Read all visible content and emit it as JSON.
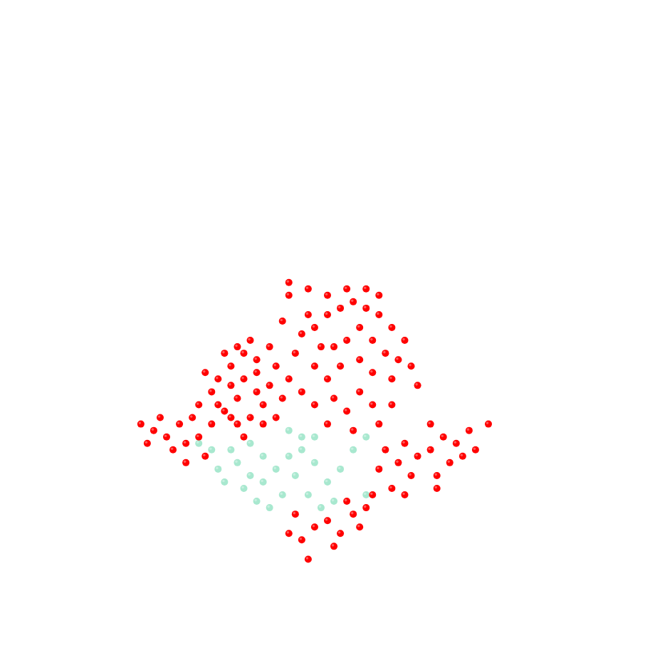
{
  "chart_data": {
    "type": "scatter",
    "xlim": [
      0,
      100
    ],
    "ylim": [
      0,
      100
    ],
    "tick_labels": false,
    "grid": false,
    "marker": "sphere",
    "series": [
      {
        "color": "#a8e8cf",
        "x": [
          36,
          38,
          40,
          37,
          39,
          42,
          44,
          46,
          45,
          43,
          41,
          48,
          50,
          47,
          52,
          54,
          56,
          35,
          33,
          32,
          30,
          34,
          49,
          51,
          46,
          44,
          48,
          40,
          38,
          56
        ],
        "values": [
          29,
          27,
          26,
          25,
          23,
          28,
          30,
          31,
          27,
          24,
          22,
          29,
          26,
          24,
          28,
          31,
          33,
          31,
          28,
          31,
          32,
          26,
          22,
          23,
          33,
          34,
          33,
          30,
          32,
          24
        ]
      },
      {
        "color": "#ff0000",
        "x": [
          33,
          35,
          37,
          39,
          41,
          36,
          34,
          38,
          40,
          32,
          31,
          35,
          37,
          39,
          42,
          33,
          36,
          40,
          43,
          34,
          38,
          36,
          41,
          30,
          32,
          37,
          39,
          35,
          44,
          42,
          48,
          50,
          52,
          54,
          56,
          58,
          60,
          62,
          55,
          53,
          51,
          57,
          59,
          61,
          49,
          47,
          46,
          50,
          53,
          56,
          58,
          63,
          64,
          52,
          55,
          57,
          60,
          48,
          50,
          45,
          44,
          43,
          47,
          44,
          48,
          51,
          53,
          55,
          57,
          50,
          46,
          54,
          58,
          60,
          62,
          64,
          66,
          68,
          70,
          72,
          69,
          67,
          63,
          61,
          71,
          73,
          75,
          66,
          59,
          58,
          60,
          62,
          57,
          56,
          67,
          44,
          46,
          48,
          50,
          52,
          54,
          45,
          51,
          53,
          47,
          55,
          21,
          23,
          25,
          24,
          27,
          28,
          26,
          29,
          30,
          22,
          28,
          31
        ],
        "values": [
          42,
          44,
          46,
          43,
          41,
          39,
          37,
          36,
          38,
          40,
          43,
          41,
          42,
          45,
          44,
          38,
          35,
          35,
          39,
          46,
          48,
          47,
          47,
          38,
          35,
          33,
          40,
          36,
          42,
          36,
          50,
          52,
          53,
          54,
          53,
          52,
          50,
          48,
          50,
          48,
          47,
          48,
          46,
          45,
          47,
          52,
          49,
          55,
          56,
          56,
          55,
          44,
          41,
          44,
          45,
          43,
          42,
          44,
          42,
          46,
          55,
          51,
          56,
          57,
          38,
          39,
          37,
          40,
          38,
          35,
          40,
          34,
          35,
          38,
          32,
          30,
          31,
          33,
          32,
          34,
          29,
          27,
          27,
          29,
          30,
          31,
          35,
          35,
          31,
          28,
          25,
          24,
          24,
          22,
          25,
          18,
          17,
          19,
          20,
          18,
          21,
          21,
          16,
          23,
          14,
          19,
          35,
          34,
          33,
          36,
          35,
          32,
          31,
          36,
          33,
          32,
          29,
          30
        ]
      }
    ]
  }
}
